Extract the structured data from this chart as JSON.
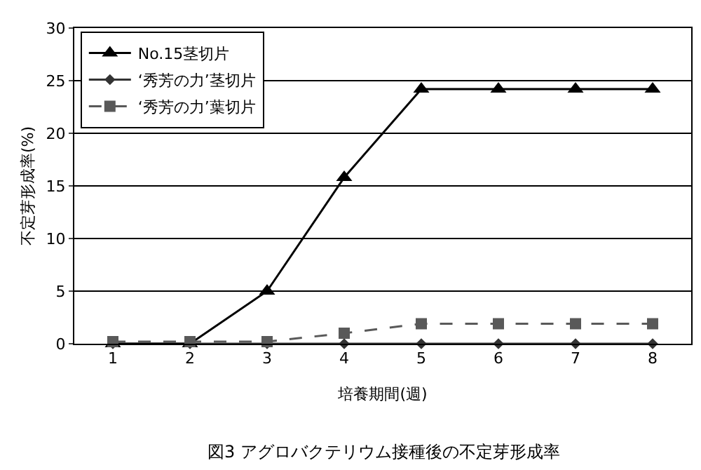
{
  "chart_data": {
    "type": "line",
    "xlabel": "培養期間(週)",
    "ylabel": "不定芽形成率(%)",
    "categories": [
      "1",
      "2",
      "3",
      "4",
      "5",
      "6",
      "7",
      "8"
    ],
    "series": [
      {
        "name": "No.15茎切片",
        "color": "#000000",
        "marker": "triangle",
        "line_style": "solid",
        "values": [
          0,
          0,
          5,
          15.8,
          24.2,
          24.2,
          24.2,
          24.2
        ]
      },
      {
        "name": "‘秀芳の力’茎切片",
        "color": "#333333",
        "marker": "diamond",
        "line_style": "solid",
        "values": [
          0,
          0,
          0,
          0,
          0,
          0,
          0,
          0
        ]
      },
      {
        "name": "‘秀芳の力’葉切片",
        "color": "#595959",
        "marker": "square",
        "line_style": "dashed",
        "values": [
          0.2,
          0.2,
          0.2,
          1,
          1.9,
          1.9,
          1.9,
          1.9
        ]
      }
    ],
    "ylim": [
      0,
      30
    ],
    "yticks": [
      0,
      5,
      10,
      15,
      20,
      25,
      30
    ],
    "grid": "y",
    "legend": "top left",
    "annotations": [
      "図3 アグロバクテリウム接種後の不定芽形成率"
    ]
  }
}
